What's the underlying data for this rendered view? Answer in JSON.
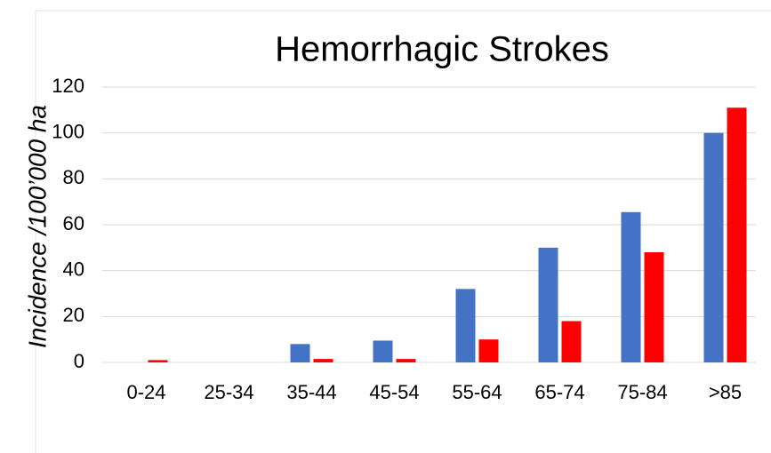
{
  "chart_data": {
    "type": "bar",
    "title": "Hemorrhagic Strokes",
    "y_label": "Incidence /100’000 ha",
    "categories": [
      "0-24",
      "25-34",
      "35-44",
      "45-54",
      "55-64",
      "65-74",
      "75-84",
      ">85"
    ],
    "series": [
      {
        "color": "#4472c4",
        "values": [
          0,
          0,
          8,
          9.5,
          32,
          50,
          65.5,
          100
        ]
      },
      {
        "color": "#ff0000",
        "values": [
          1,
          0,
          1.5,
          1.5,
          10,
          18,
          48,
          111
        ]
      }
    ],
    "ylim": [
      0,
      120
    ],
    "yticks": [
      0,
      20,
      40,
      60,
      80,
      100,
      120
    ],
    "grid": true
  }
}
